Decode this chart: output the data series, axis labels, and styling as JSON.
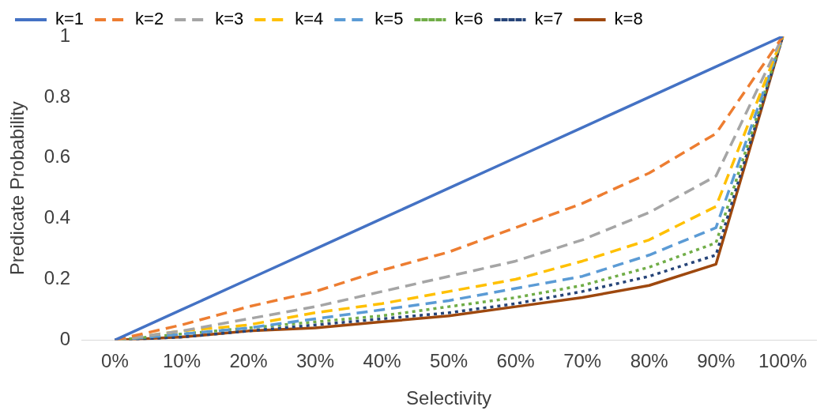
{
  "chart_data": {
    "type": "line",
    "xlabel": "Selectivity",
    "ylabel": "Predicate Probability",
    "categories": [
      "0%",
      "10%",
      "20%",
      "30%",
      "40%",
      "50%",
      "60%",
      "70%",
      "80%",
      "90%",
      "100%"
    ],
    "ylim": [
      0,
      1
    ],
    "yticks": [
      0,
      0.2,
      0.4,
      0.6,
      0.8,
      1
    ],
    "grid": false,
    "legend": "top",
    "marker": "none",
    "series": [
      {
        "name": "k=1",
        "color": "#4472c4",
        "line_style": "solid",
        "values": [
          0,
          0.1,
          0.2,
          0.3,
          0.4,
          0.5,
          0.6,
          0.7,
          0.8,
          0.9,
          1
        ]
      },
      {
        "name": "k=2",
        "color": "#ed7d31",
        "line_style": "dashed",
        "values": [
          0,
          0.05,
          0.11,
          0.16,
          0.23,
          0.29,
          0.37,
          0.45,
          0.55,
          0.68,
          1
        ]
      },
      {
        "name": "k=3",
        "color": "#a5a5a5",
        "line_style": "dashed",
        "values": [
          0,
          0.03,
          0.07,
          0.11,
          0.16,
          0.21,
          0.26,
          0.33,
          0.42,
          0.54,
          1
        ]
      },
      {
        "name": "k=4",
        "color": "#ffc000",
        "line_style": "dashed",
        "values": [
          0,
          0.03,
          0.05,
          0.09,
          0.12,
          0.16,
          0.2,
          0.26,
          0.33,
          0.44,
          1
        ]
      },
      {
        "name": "k=5",
        "color": "#5b9bd5",
        "line_style": "dashed",
        "values": [
          0,
          0.02,
          0.04,
          0.07,
          0.1,
          0.13,
          0.17,
          0.21,
          0.28,
          0.37,
          1
        ]
      },
      {
        "name": "k=6",
        "color": "#70ad47",
        "line_style": "dotted",
        "values": [
          0,
          0.02,
          0.04,
          0.06,
          0.08,
          0.11,
          0.14,
          0.18,
          0.24,
          0.32,
          1
        ]
      },
      {
        "name": "k=7",
        "color": "#264478",
        "line_style": "dotted",
        "values": [
          0,
          0.01,
          0.03,
          0.05,
          0.07,
          0.09,
          0.12,
          0.16,
          0.21,
          0.28,
          1
        ]
      },
      {
        "name": "k=8",
        "color": "#9e480e",
        "line_style": "solid",
        "values": [
          0,
          0.01,
          0.03,
          0.04,
          0.06,
          0.08,
          0.11,
          0.14,
          0.18,
          0.25,
          1
        ]
      }
    ]
  }
}
